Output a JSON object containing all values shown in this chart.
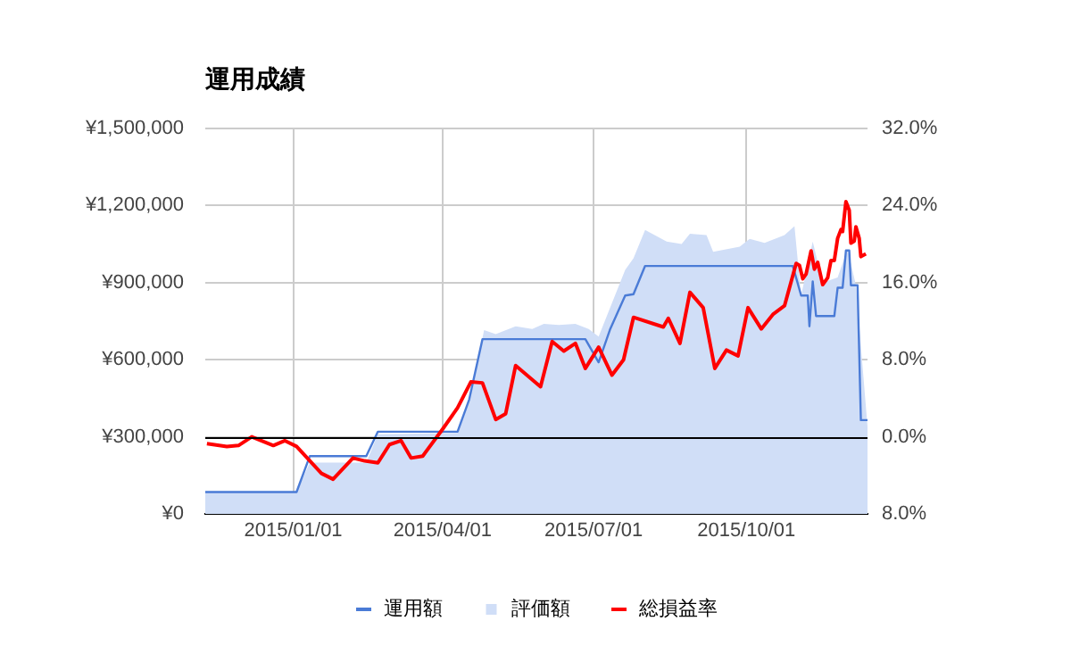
{
  "chart_data": {
    "type": "line",
    "title": "運用成績",
    "xlim": [
      "2014-11-09",
      "2015-12-13"
    ],
    "xticks": [
      {
        "value": "2015-01-01",
        "label": "2015/01/01"
      },
      {
        "value": "2015-04-01",
        "label": "2015/04/01"
      },
      {
        "value": "2015-07-01",
        "label": "2015/07/01"
      },
      {
        "value": "2015-10-01",
        "label": "2015/10/01"
      }
    ],
    "ylim": [
      0,
      1500000
    ],
    "yticks": [
      {
        "value": 0,
        "label": "¥0"
      },
      {
        "value": 300000,
        "label": "¥300,000"
      },
      {
        "value": 600000,
        "label": "¥600,000"
      },
      {
        "value": 900000,
        "label": "¥900,000"
      },
      {
        "value": 1200000,
        "label": "¥1,200,000"
      },
      {
        "value": 1500000,
        "label": "¥1,500,000"
      }
    ],
    "y2lim": [
      -8,
      32
    ],
    "y2ticks": [
      {
        "value": -8,
        "label": "8.0%"
      },
      {
        "value": 0,
        "label": "0.0%"
      },
      {
        "value": 8,
        "label": "8.0%"
      },
      {
        "value": 16,
        "label": "16.0%"
      },
      {
        "value": 24,
        "label": "24.0%"
      },
      {
        "value": 32,
        "label": "32.0%"
      }
    ],
    "grid": true,
    "legend": "bottom",
    "ref_lines": [
      {
        "axis": "y2",
        "value": 0,
        "color": "#000000"
      }
    ],
    "series": [
      {
        "name": "運用額",
        "type": "line",
        "color": "#4a7bd6",
        "x": [
          "2014-11-09",
          "2015-01-03",
          "2015-01-11",
          "2015-02-14",
          "2015-02-21",
          "2015-04-10",
          "2015-04-17",
          "2015-04-25",
          "2015-06-26",
          "2015-07-04",
          "2015-07-11",
          "2015-07-20",
          "2015-07-25",
          "2015-08-01",
          "2015-10-29",
          "2015-11-03",
          "2015-11-07",
          "2015-11-08",
          "2015-11-10",
          "2015-11-12",
          "2015-11-23",
          "2015-11-25",
          "2015-11-28",
          "2015-11-30",
          "2015-12-02",
          "2015-12-03",
          "2015-12-07",
          "2015-12-09",
          "2015-12-13"
        ],
        "values": [
          85000,
          85000,
          225000,
          225000,
          320000,
          320000,
          445000,
          680000,
          680000,
          590000,
          720000,
          850000,
          855000,
          965000,
          965000,
          850000,
          850000,
          730000,
          905000,
          770000,
          770000,
          880000,
          880000,
          1025000,
          1025000,
          890000,
          890000,
          365000,
          365000
        ]
      },
      {
        "name": "評価額",
        "type": "area",
        "color": "#d0def7",
        "x": [
          "2014-11-09",
          "2015-01-03",
          "2015-01-11",
          "2015-02-14",
          "2015-02-21",
          "2015-04-10",
          "2015-04-17",
          "2015-04-26",
          "2015-05-03",
          "2015-05-15",
          "2015-05-25",
          "2015-06-01",
          "2015-06-10",
          "2015-06-20",
          "2015-06-28",
          "2015-07-04",
          "2015-07-20",
          "2015-07-25",
          "2015-08-01",
          "2015-08-14",
          "2015-08-23",
          "2015-08-28",
          "2015-09-07",
          "2015-09-11",
          "2015-09-27",
          "2015-10-03",
          "2015-10-12",
          "2015-10-24",
          "2015-10-30",
          "2015-11-03",
          "2015-11-10",
          "2015-11-16",
          "2015-11-25",
          "2015-12-01",
          "2015-12-06",
          "2015-12-13"
        ],
        "values": [
          85000,
          85000,
          200000,
          200000,
          310000,
          315000,
          440000,
          715000,
          700000,
          730000,
          720000,
          740000,
          735000,
          740000,
          720000,
          690000,
          950000,
          995000,
          1105000,
          1060000,
          1050000,
          1090000,
          1085000,
          1020000,
          1040000,
          1070000,
          1055000,
          1085000,
          1120000,
          850000,
          1060000,
          900000,
          920000,
          1030000,
          890000,
          340000
        ]
      },
      {
        "name": "総損益率",
        "type": "line",
        "axis": "y2",
        "color": "#ff0000",
        "x": [
          "2014-11-10",
          "2014-11-22",
          "2014-11-29",
          "2014-12-07",
          "2014-12-20",
          "2014-12-27",
          "2015-01-03",
          "2015-01-18",
          "2015-01-25",
          "2015-02-06",
          "2015-02-13",
          "2015-02-21",
          "2015-02-28",
          "2015-03-07",
          "2015-03-13",
          "2015-03-20",
          "2015-04-01",
          "2015-04-10",
          "2015-04-18",
          "2015-04-25",
          "2015-05-03",
          "2015-05-09",
          "2015-05-15",
          "2015-05-30",
          "2015-06-06",
          "2015-06-13",
          "2015-06-20",
          "2015-06-26",
          "2015-07-04",
          "2015-07-12",
          "2015-07-19",
          "2015-07-25",
          "2015-08-12",
          "2015-08-15",
          "2015-08-22",
          "2015-08-28",
          "2015-09-05",
          "2015-09-12",
          "2015-09-19",
          "2015-09-26",
          "2015-10-02",
          "2015-10-10",
          "2015-10-17",
          "2015-10-24",
          "2015-10-31",
          "2015-11-02",
          "2015-11-04",
          "2015-11-06",
          "2015-11-09",
          "2015-11-11",
          "2015-11-13",
          "2015-11-16",
          "2015-11-19",
          "2015-11-21",
          "2015-11-23",
          "2015-11-25",
          "2015-11-27",
          "2015-11-28",
          "2015-11-30",
          "2015-12-02",
          "2015-12-03",
          "2015-12-05",
          "2015-12-06",
          "2015-12-08",
          "2015-12-09",
          "2015-12-12"
        ],
        "values": [
          -0.7,
          -1.0,
          -0.9,
          0,
          -0.9,
          -0.4,
          -1.0,
          -3.8,
          -4.4,
          -2.2,
          -2.5,
          -2.7,
          -0.8,
          -0.4,
          -2.2,
          -2.0,
          0.8,
          3.0,
          5.7,
          5.6,
          1.8,
          2.4,
          7.4,
          5.2,
          9.9,
          8.9,
          9.7,
          7.1,
          9.3,
          6.4,
          8.0,
          12.4,
          11.4,
          12.3,
          9.7,
          15.0,
          13.4,
          7.1,
          9.0,
          8.4,
          13.4,
          11.2,
          12.7,
          13.6,
          18.0,
          17.8,
          16.4,
          16.9,
          19.3,
          17.4,
          18.1,
          15.8,
          16.5,
          18.3,
          18.3,
          20.6,
          21.5,
          21.3,
          24.4,
          23.5,
          20.1,
          20.3,
          21.8,
          20.6,
          18.7,
          19.0
        ]
      }
    ]
  }
}
